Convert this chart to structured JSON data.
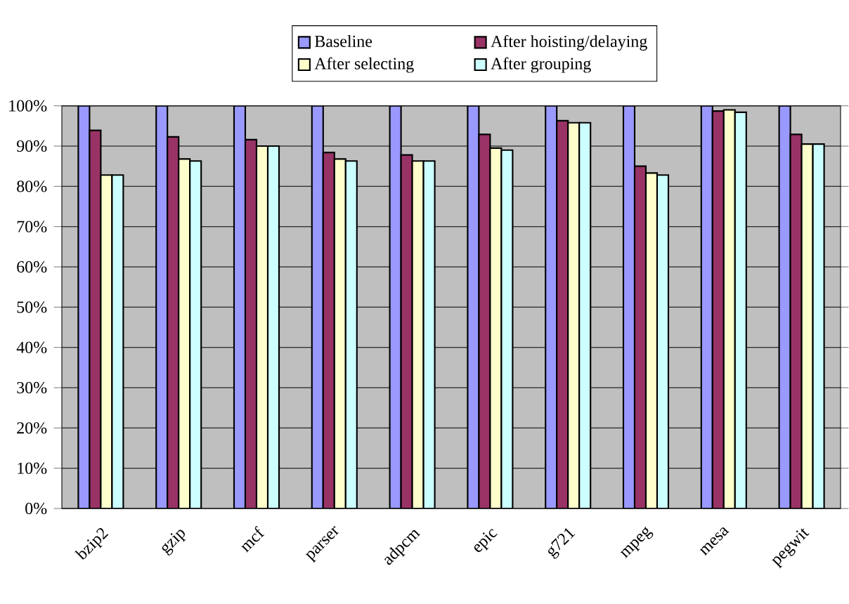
{
  "chart_data": {
    "type": "bar",
    "categories": [
      "bzip2",
      "gzip",
      "mcf",
      "parser",
      "adpcm",
      "epic",
      "g721",
      "mpeg",
      "mesa",
      "pegwit"
    ],
    "series": [
      {
        "name": "Baseline",
        "color": "#9999ff",
        "values": [
          100,
          100,
          100,
          100,
          100,
          100,
          100,
          100,
          100,
          100
        ]
      },
      {
        "name": "After hoisting/delaying",
        "color": "#993366",
        "values": [
          93.9,
          92.3,
          91.6,
          88.4,
          87.8,
          92.9,
          96.3,
          85.0,
          98.7,
          92.9
        ]
      },
      {
        "name": "After selecting",
        "color": "#ffffcc",
        "values": [
          82.8,
          86.8,
          90.0,
          86.8,
          86.3,
          89.5,
          95.8,
          83.3,
          99.0,
          90.5
        ]
      },
      {
        "name": "After grouping",
        "color": "#ccffff",
        "values": [
          82.8,
          86.3,
          90.0,
          86.3,
          86.3,
          89.0,
          95.8,
          82.8,
          98.4,
          90.5
        ]
      }
    ],
    "ylim": [
      0,
      100
    ],
    "yticks": [
      {
        "value": 0,
        "label": "0%"
      },
      {
        "value": 10,
        "label": "10%"
      },
      {
        "value": 20,
        "label": "20%"
      },
      {
        "value": 30,
        "label": "30%"
      },
      {
        "value": 40,
        "label": "40%"
      },
      {
        "value": 50,
        "label": "50%"
      },
      {
        "value": 60,
        "label": "60%"
      },
      {
        "value": 70,
        "label": "70%"
      },
      {
        "value": 80,
        "label": "80%"
      },
      {
        "value": 90,
        "label": "90%"
      },
      {
        "value": 100,
        "label": "100%"
      }
    ],
    "grid": "y",
    "legend": "top"
  }
}
